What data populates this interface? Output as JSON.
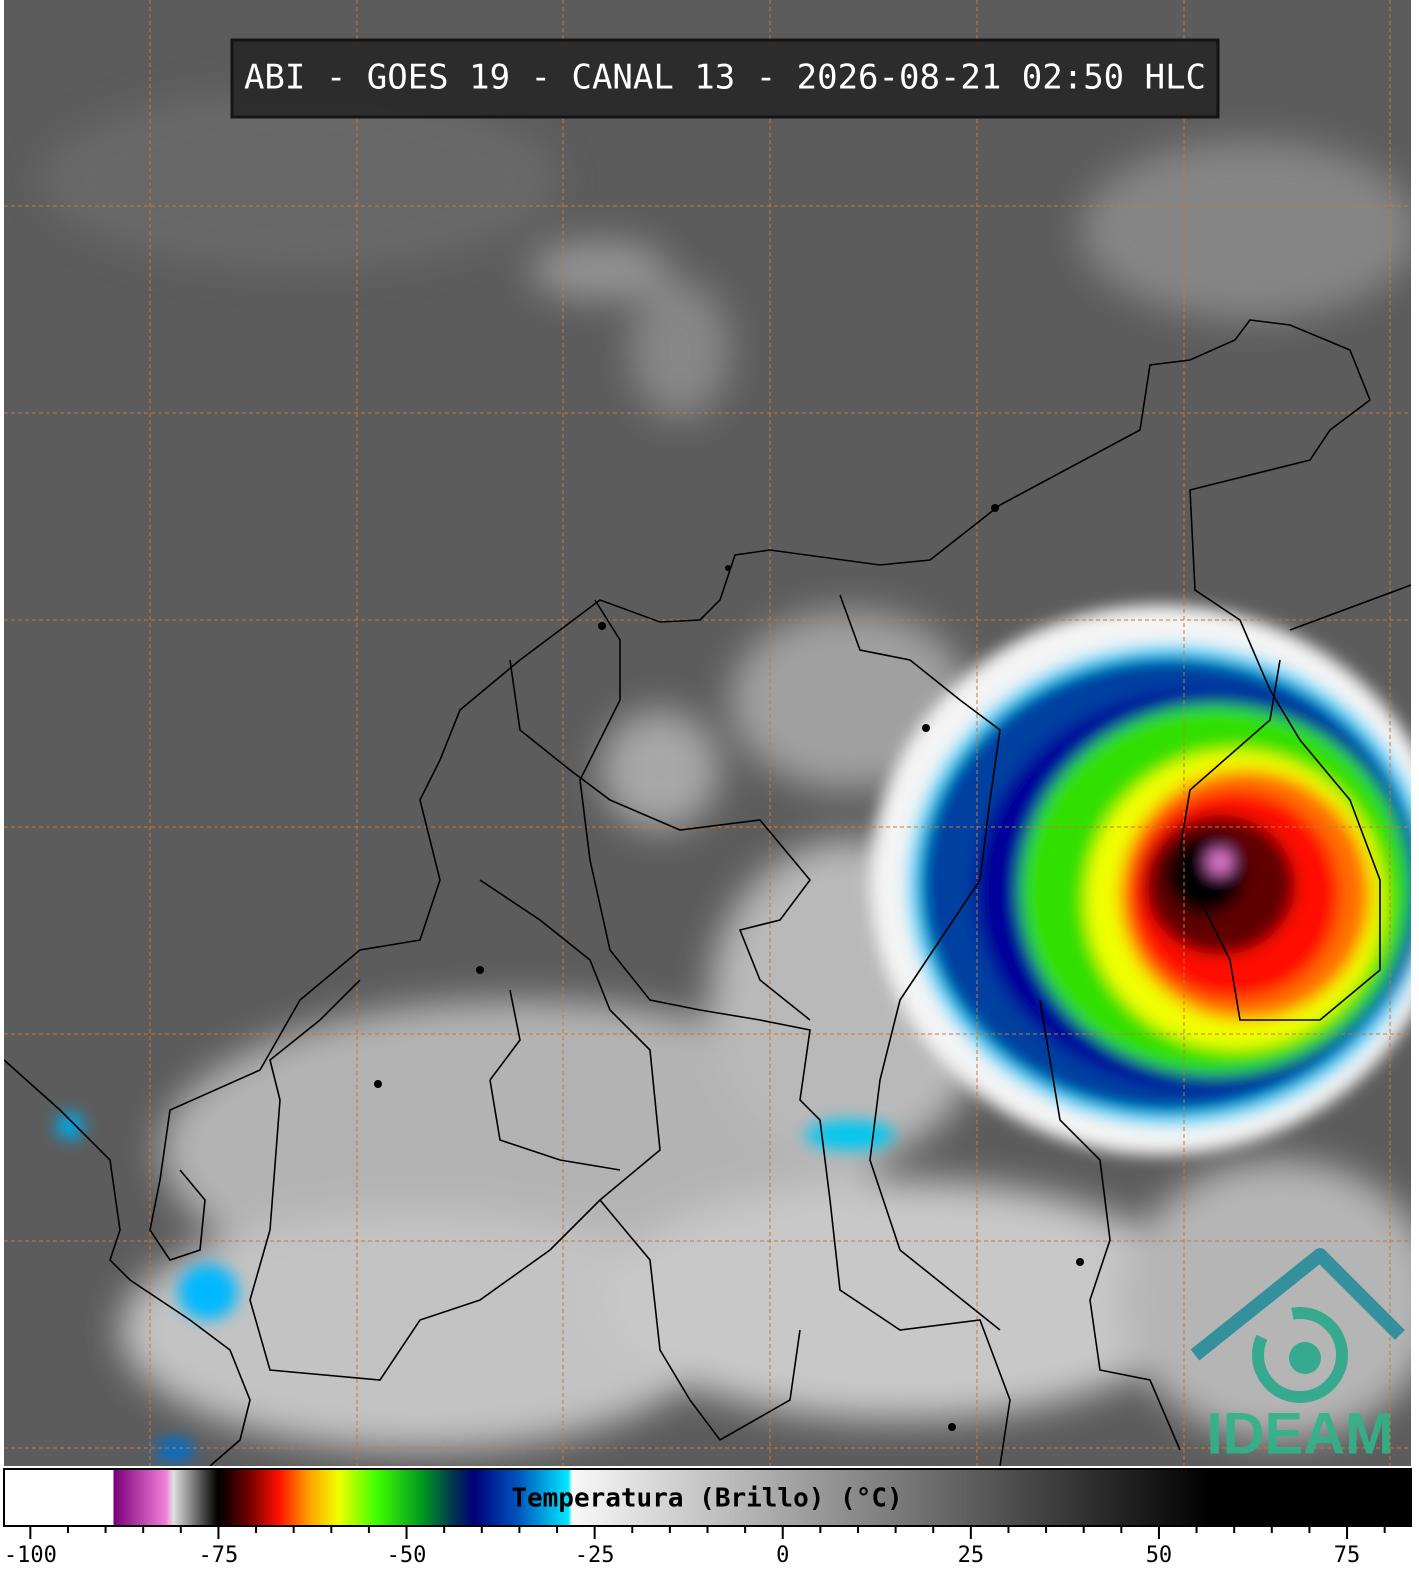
{
  "header": {
    "title": "ABI - GOES 19 - CANAL 13 - 2026-08-21 02:50 HLC"
  },
  "logo": {
    "text": "IDEAM"
  },
  "colorbar": {
    "label": "Temperatura (Brillo) (°C)",
    "range": [
      -103.5,
      83.5
    ],
    "ticks": [
      -100,
      -75,
      -50,
      -25,
      0,
      25,
      50,
      75
    ],
    "minor_ticks": [
      -95,
      -90,
      -85,
      -80,
      -70,
      -65,
      -60,
      -55,
      -45,
      -40,
      -35,
      -30,
      -20,
      -15,
      -10,
      -5,
      5,
      10,
      15,
      20,
      30,
      35,
      40,
      45,
      55,
      60,
      65,
      70,
      80
    ],
    "stops": [
      {
        "value": -103.5,
        "color": "#ffffff"
      },
      {
        "value": -89,
        "color": "#ffffff"
      },
      {
        "value": -88.9,
        "color": "#7a007a"
      },
      {
        "value": -82,
        "color": "#f080d8"
      },
      {
        "value": -81,
        "color": "#e0e0e0"
      },
      {
        "value": -75.5,
        "color": "#101010"
      },
      {
        "value": -75,
        "color": "#000000"
      },
      {
        "value": -71,
        "color": "#700000"
      },
      {
        "value": -67,
        "color": "#ff1000"
      },
      {
        "value": -63,
        "color": "#ffa000"
      },
      {
        "value": -59,
        "color": "#f0ff00"
      },
      {
        "value": -54,
        "color": "#40ff00"
      },
      {
        "value": -48,
        "color": "#009a20"
      },
      {
        "value": -44,
        "color": "#003a50"
      },
      {
        "value": -41,
        "color": "#00007a"
      },
      {
        "value": -35,
        "color": "#0058c0"
      },
      {
        "value": -28.5,
        "color": "#00e8ff"
      },
      {
        "value": -28,
        "color": "#f8f8f8"
      },
      {
        "value": 57,
        "color": "#000000"
      },
      {
        "value": 83.5,
        "color": "#000000"
      }
    ]
  }
}
